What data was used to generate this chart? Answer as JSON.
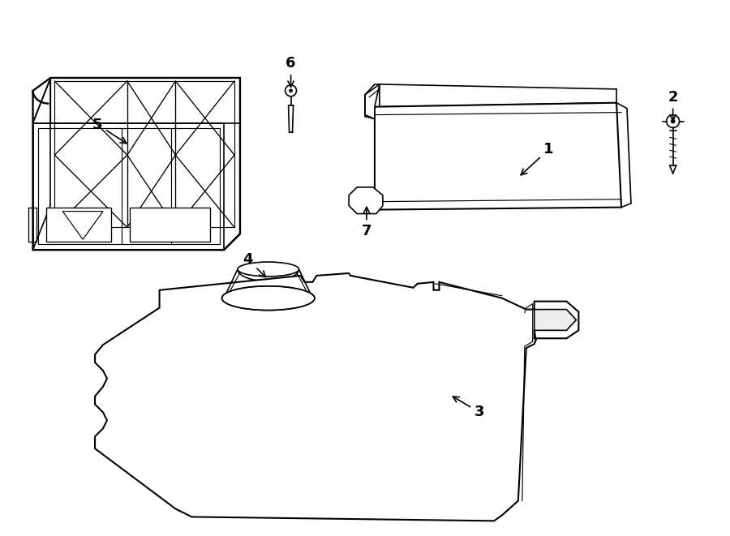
{
  "background_color": "#ffffff",
  "line_color": "#000000",
  "line_width": 1.2,
  "label_fontsize": 13
}
